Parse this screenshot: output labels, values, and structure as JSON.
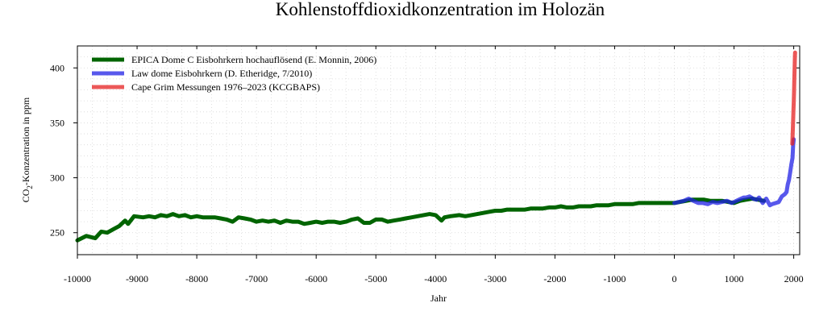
{
  "chart_data": {
    "type": "line",
    "title": "Kohlenstoffdioxidkonzentration im Holozän",
    "xlabel": "Jahr",
    "ylabel_main": "CO",
    "ylabel_sub": "2",
    "ylabel_rest": "-Konzentration in ppm",
    "xlim": [
      -10000,
      2100
    ],
    "ylim": [
      230,
      420
    ],
    "xticks": [
      -10000,
      -9000,
      -8000,
      -7000,
      -6000,
      -5000,
      -4000,
      -3000,
      -2000,
      -1000,
      0,
      1000,
      2000
    ],
    "yticks": [
      250,
      300,
      350,
      400
    ],
    "grid": true,
    "legend_position": "top-left",
    "series": [
      {
        "name": "EPICA Dome C Eisbohrkern hochauflösend (E. Monnin, 2006)",
        "color": "#006400",
        "x": [
          -10000,
          -9850,
          -9700,
          -9600,
          -9500,
          -9400,
          -9300,
          -9200,
          -9150,
          -9050,
          -8900,
          -8800,
          -8700,
          -8600,
          -8500,
          -8400,
          -8300,
          -8200,
          -8100,
          -8000,
          -7900,
          -7800,
          -7700,
          -7600,
          -7500,
          -7400,
          -7300,
          -7200,
          -7100,
          -7000,
          -6900,
          -6800,
          -6700,
          -6600,
          -6500,
          -6400,
          -6300,
          -6200,
          -6100,
          -6000,
          -5900,
          -5800,
          -5700,
          -5600,
          -5500,
          -5400,
          -5300,
          -5200,
          -5100,
          -5000,
          -4900,
          -4800,
          -4700,
          -4600,
          -4500,
          -4400,
          -4300,
          -4200,
          -4100,
          -4000,
          -3900,
          -3850,
          -3750,
          -3600,
          -3500,
          -3400,
          -3300,
          -3200,
          -3100,
          -3000,
          -2900,
          -2800,
          -2700,
          -2600,
          -2500,
          -2400,
          -2300,
          -2200,
          -2100,
          -2000,
          -1900,
          -1800,
          -1700,
          -1600,
          -1500,
          -1400,
          -1300,
          -1200,
          -1100,
          -1000,
          -900,
          -800,
          -700,
          -600,
          -500,
          -400,
          -300,
          -200,
          -100,
          0,
          100,
          200,
          300,
          400,
          500,
          600,
          700,
          800,
          900,
          1000,
          1100,
          1200,
          1300,
          1400,
          1500
        ],
        "y": [
          243,
          247,
          245,
          251,
          250,
          253,
          256,
          261,
          258,
          265,
          264,
          265,
          264,
          266,
          265,
          267,
          265,
          266,
          264,
          265,
          264,
          264,
          264,
          263,
          262,
          260,
          264,
          263,
          262,
          260,
          261,
          260,
          261,
          259,
          261,
          260,
          260,
          258,
          259,
          260,
          259,
          260,
          260,
          259,
          260,
          262,
          263,
          259,
          259,
          262,
          262,
          260,
          261,
          262,
          263,
          264,
          265,
          266,
          267,
          266,
          261,
          264,
          265,
          266,
          265,
          266,
          267,
          268,
          269,
          270,
          270,
          271,
          271,
          271,
          271,
          272,
          272,
          272,
          273,
          273,
          274,
          273,
          273,
          274,
          274,
          274,
          275,
          275,
          275,
          276,
          276,
          276,
          276,
          277,
          277,
          277,
          277,
          277,
          277,
          277,
          278,
          279,
          280,
          280,
          280,
          279,
          279,
          279,
          278,
          277,
          279,
          280,
          281,
          280,
          279
        ]
      },
      {
        "name": "Law dome Eisbohrkern (D. Etheridge, 7/2010)",
        "color": "#2020e6",
        "x": [
          0,
          80,
          160,
          240,
          320,
          400,
          480,
          560,
          640,
          720,
          800,
          880,
          960,
          1000,
          1080,
          1160,
          1200,
          1260,
          1320,
          1380,
          1420,
          1480,
          1540,
          1600,
          1640,
          1700,
          1750,
          1800,
          1850,
          1880,
          1900,
          1920,
          1940,
          1960,
          1980,
          1990,
          2000
        ],
        "y": [
          277,
          278,
          279,
          281,
          279,
          277,
          277,
          276,
          278,
          277,
          278,
          279,
          277,
          278,
          280,
          282,
          282,
          283,
          281,
          280,
          282,
          277,
          281,
          275,
          276,
          277,
          278,
          283,
          285,
          287,
          294,
          298,
          305,
          312,
          318,
          330,
          335
        ]
      },
      {
        "name": "Cape Grim Messungen 1976–2023 (KCGBAPS)",
        "color": "#e62020",
        "x": [
          1976,
          1980,
          1985,
          1990,
          1995,
          2000,
          2005,
          2010,
          2015,
          2020,
          2023
        ],
        "y": [
          331,
          336,
          344,
          353,
          360,
          368,
          378,
          388,
          399,
          411,
          414
        ]
      }
    ]
  }
}
